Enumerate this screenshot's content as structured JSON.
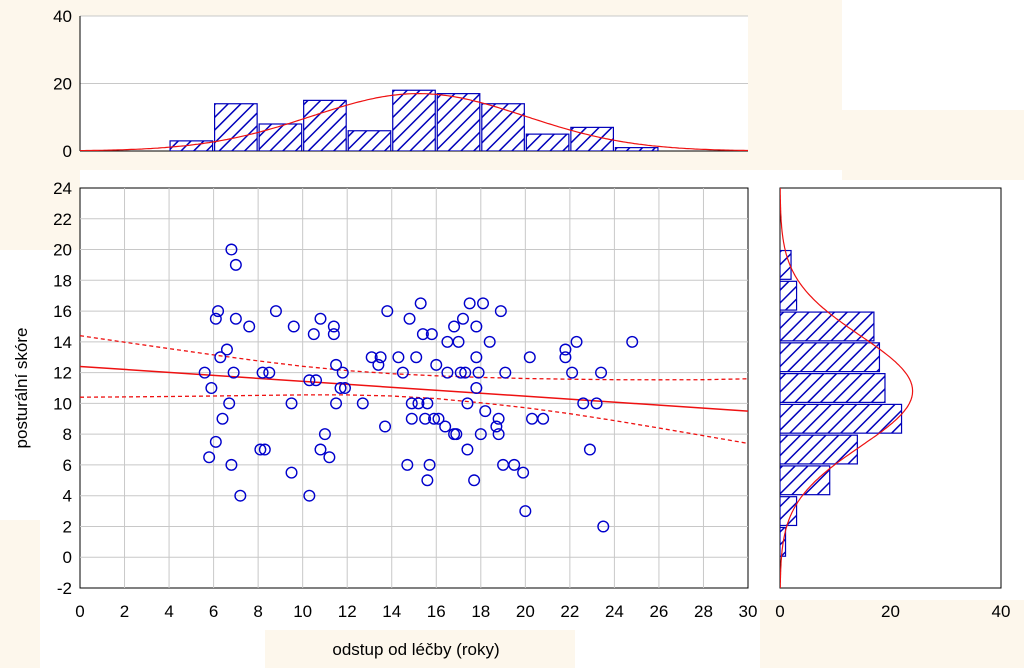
{
  "chart_data": [
    {
      "id": "scatter",
      "type": "scatter",
      "xlabel": "odstup od léčby (roky)",
      "ylabel": "posturální skóre",
      "xlim": [
        0,
        30
      ],
      "ylim": [
        -2,
        24
      ],
      "xticks": [
        0,
        2,
        4,
        6,
        8,
        10,
        12,
        14,
        16,
        18,
        20,
        22,
        24,
        26,
        28,
        30
      ],
      "yticks": [
        -2,
        0,
        2,
        4,
        6,
        8,
        10,
        12,
        14,
        16,
        18,
        20,
        22,
        24
      ],
      "grid": true,
      "points": [
        [
          5.6,
          12
        ],
        [
          5.8,
          6.5
        ],
        [
          5.9,
          11
        ],
        [
          6.1,
          7.5
        ],
        [
          6.1,
          15.5
        ],
        [
          6.2,
          16
        ],
        [
          6.3,
          13
        ],
        [
          6.4,
          9
        ],
        [
          6.6,
          13.5
        ],
        [
          6.7,
          10
        ],
        [
          6.8,
          20
        ],
        [
          6.8,
          6
        ],
        [
          6.9,
          12
        ],
        [
          7.0,
          19
        ],
        [
          7.0,
          15.5
        ],
        [
          7.2,
          4
        ],
        [
          7.6,
          15
        ],
        [
          8.1,
          7
        ],
        [
          8.2,
          12
        ],
        [
          8.3,
          7
        ],
        [
          8.5,
          12
        ],
        [
          8.8,
          16
        ],
        [
          9.5,
          10
        ],
        [
          9.5,
          5.5
        ],
        [
          9.6,
          15
        ],
        [
          10.3,
          4
        ],
        [
          10.3,
          11.5
        ],
        [
          10.5,
          14.5
        ],
        [
          10.6,
          11.5
        ],
        [
          10.8,
          7
        ],
        [
          10.8,
          15.5
        ],
        [
          11.0,
          8
        ],
        [
          11.2,
          6.5
        ],
        [
          11.4,
          14.5
        ],
        [
          11.4,
          15
        ],
        [
          11.5,
          12.5
        ],
        [
          11.5,
          10
        ],
        [
          11.7,
          11
        ],
        [
          11.8,
          12
        ],
        [
          11.9,
          11
        ],
        [
          12.7,
          10
        ],
        [
          13.1,
          13
        ],
        [
          13.4,
          12.5
        ],
        [
          13.5,
          13
        ],
        [
          13.7,
          8.5
        ],
        [
          13.8,
          16
        ],
        [
          14.3,
          13
        ],
        [
          14.5,
          12
        ],
        [
          14.7,
          6
        ],
        [
          14.8,
          15.5
        ],
        [
          14.9,
          9
        ],
        [
          14.9,
          10
        ],
        [
          15.1,
          13
        ],
        [
          15.2,
          10
        ],
        [
          15.3,
          16.5
        ],
        [
          15.4,
          14.5
        ],
        [
          15.5,
          9
        ],
        [
          15.6,
          5
        ],
        [
          15.6,
          10
        ],
        [
          15.7,
          6
        ],
        [
          15.8,
          14.5
        ],
        [
          15.9,
          9
        ],
        [
          16.0,
          12.5
        ],
        [
          16.1,
          9
        ],
        [
          16.4,
          8.5
        ],
        [
          16.5,
          14
        ],
        [
          16.5,
          12
        ],
        [
          16.8,
          8
        ],
        [
          16.8,
          15
        ],
        [
          16.9,
          8
        ],
        [
          17.0,
          14
        ],
        [
          17.1,
          12
        ],
        [
          17.2,
          15.5
        ],
        [
          17.3,
          12
        ],
        [
          17.4,
          7
        ],
        [
          17.4,
          10
        ],
        [
          17.5,
          16.5
        ],
        [
          17.7,
          5
        ],
        [
          17.8,
          13
        ],
        [
          17.8,
          15
        ],
        [
          17.8,
          11
        ],
        [
          17.9,
          12
        ],
        [
          18.0,
          8
        ],
        [
          18.1,
          16.5
        ],
        [
          18.2,
          9.5
        ],
        [
          18.4,
          14
        ],
        [
          18.7,
          8.5
        ],
        [
          18.8,
          8
        ],
        [
          18.8,
          9
        ],
        [
          18.9,
          16
        ],
        [
          19.0,
          6
        ],
        [
          19.1,
          12
        ],
        [
          19.5,
          6
        ],
        [
          19.9,
          5.5
        ],
        [
          20.0,
          3
        ],
        [
          20.2,
          13
        ],
        [
          20.3,
          9
        ],
        [
          20.8,
          9
        ],
        [
          21.8,
          13
        ],
        [
          21.8,
          13.5
        ],
        [
          22.1,
          12
        ],
        [
          22.3,
          14
        ],
        [
          22.6,
          10
        ],
        [
          22.9,
          7
        ],
        [
          23.2,
          10
        ],
        [
          23.4,
          12
        ],
        [
          23.5,
          2
        ],
        [
          24.8,
          14
        ]
      ],
      "fit_line": {
        "x": [
          0,
          30
        ],
        "y": [
          12.4,
          9.5
        ]
      },
      "confidence_band": {
        "x": [
          0,
          2,
          4,
          6,
          8,
          10,
          12,
          14,
          16,
          18,
          20,
          22,
          24,
          26,
          28,
          30
        ],
        "upper": [
          14.4,
          13.98,
          13.56,
          13.15,
          12.76,
          12.41,
          12.13,
          11.93,
          11.79,
          11.69,
          11.62,
          11.57,
          11.54,
          11.53,
          11.54,
          11.6
        ],
        "lower": [
          10.4,
          10.42,
          10.45,
          10.48,
          10.52,
          10.55,
          10.55,
          10.48,
          10.31,
          10.04,
          9.72,
          9.33,
          8.88,
          8.4,
          7.9,
          7.4
        ]
      }
    },
    {
      "id": "x-histogram",
      "type": "bar",
      "orientation": "vertical",
      "bin_edges": [
        0,
        2,
        4,
        6,
        8,
        10,
        12,
        14,
        16,
        18,
        20,
        22,
        24,
        26,
        28,
        30
      ],
      "values": [
        0,
        0,
        3,
        14,
        8,
        15,
        6,
        18,
        17,
        14,
        5,
        7,
        1,
        0,
        0
      ],
      "ylim": [
        0,
        40
      ],
      "yticks": [
        0,
        20,
        40
      ],
      "normal_curve": {
        "mean": 15.2,
        "sd": 4.8,
        "peak": 17
      }
    },
    {
      "id": "y-histogram",
      "type": "bar",
      "orientation": "horizontal",
      "bin_edges": [
        -2,
        0,
        2,
        4,
        6,
        8,
        10,
        12,
        14,
        16,
        18,
        20,
        22,
        24
      ],
      "values": [
        0,
        1,
        3,
        9,
        14,
        22,
        19,
        18,
        17,
        3,
        2,
        0,
        0
      ],
      "xlim": [
        0,
        40
      ],
      "xticks": [
        0,
        20,
        40
      ],
      "normal_curve": {
        "mean": 10.8,
        "sd": 3.6,
        "peak": 24
      }
    }
  ],
  "colors": {
    "marker": "#0000cc",
    "bar_stroke": "#0000bb",
    "fit": "#ee1111",
    "grid": "#c8c8c8",
    "panel_bg": "#fdf7ec"
  }
}
